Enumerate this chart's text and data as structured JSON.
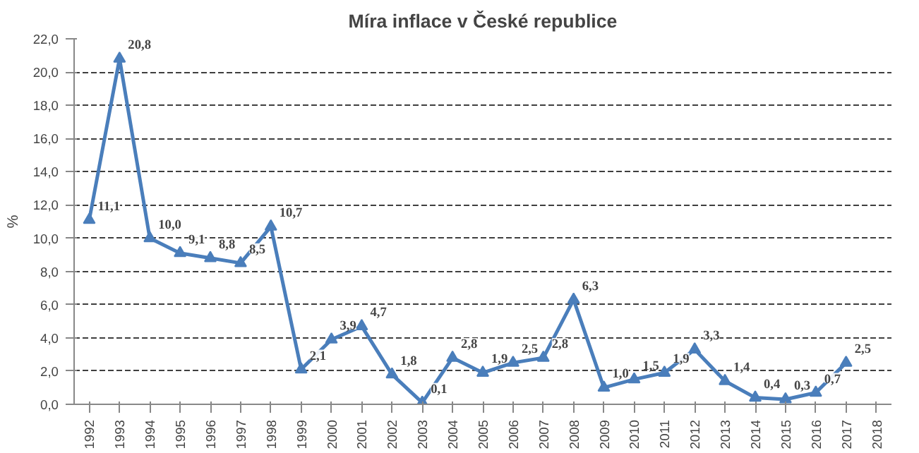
{
  "chart_data": {
    "type": "line",
    "title": "Míra inflace v České republice",
    "ylabel": "%",
    "categories": [
      "1992",
      "1993",
      "1994",
      "1995",
      "1996",
      "1997",
      "1998",
      "1999",
      "2000",
      "2001",
      "2002",
      "2003",
      "2004",
      "2005",
      "2006",
      "2007",
      "2008",
      "2009",
      "2010",
      "2011",
      "2012",
      "2013",
      "2014",
      "2015",
      "2016",
      "2017",
      "2018"
    ],
    "series": [
      {
        "color": "#4a7ebb",
        "values": [
          11.1,
          20.8,
          10.0,
          9.1,
          8.8,
          8.5,
          10.7,
          2.1,
          3.9,
          4.7,
          1.8,
          0.1,
          2.8,
          1.9,
          2.5,
          2.8,
          6.3,
          1.0,
          1.5,
          1.9,
          3.3,
          1.4,
          0.4,
          0.3,
          0.7,
          2.5,
          null
        ],
        "value_labels": [
          "11,1",
          "20,8",
          "10,0",
          "9,1",
          "8,8",
          "8,5",
          "10,7",
          "2,1",
          "3,9",
          "4,7",
          "1,8",
          "0,1",
          "2,8",
          "1,9",
          "2,5",
          "2,8",
          "6,3",
          "1,0",
          "1,5",
          "1,9",
          "3,3",
          "1,4",
          "0,4",
          "0,3",
          "0,7",
          "2,5",
          null
        ]
      }
    ],
    "ylim": [
      0,
      22
    ],
    "yticks": [
      {
        "value": 0,
        "label": "0,0"
      },
      {
        "value": 2,
        "label": "2,0"
      },
      {
        "value": 4,
        "label": "4,0"
      },
      {
        "value": 6,
        "label": "6,0"
      },
      {
        "value": 8,
        "label": "8,0"
      },
      {
        "value": 10,
        "label": "10,0"
      },
      {
        "value": 12,
        "label": "12,0"
      },
      {
        "value": 14,
        "label": "14,0"
      },
      {
        "value": 16,
        "label": "16,0"
      },
      {
        "value": 18,
        "label": "18,0"
      },
      {
        "value": 20,
        "label": "20,0"
      },
      {
        "value": 22,
        "label": "22,0"
      }
    ],
    "grid": "y",
    "marker": "triangle",
    "line_style": "solid"
  }
}
